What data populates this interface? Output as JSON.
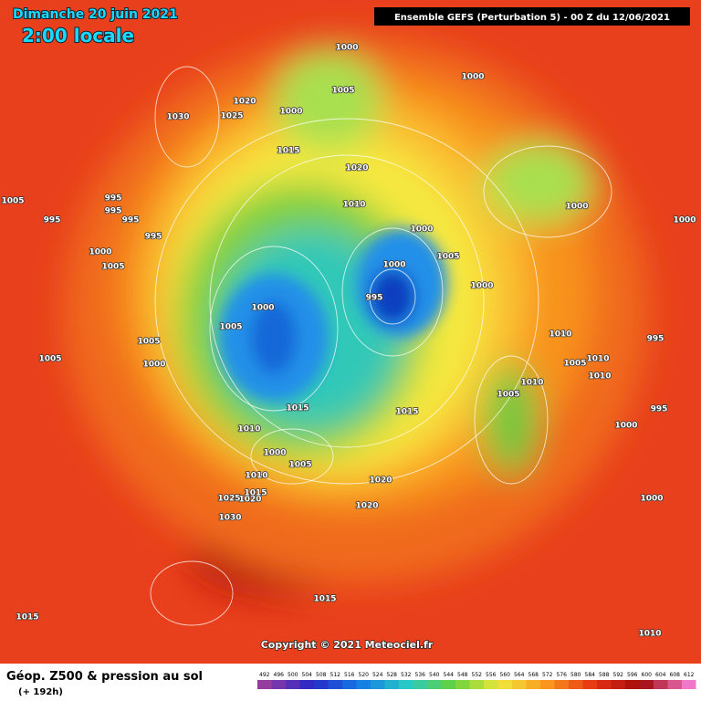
{
  "header": {
    "date": "Dimanche 20 juin 2021",
    "time": "2:00 locale",
    "run": "Ensemble GEFS  (Perturbation 5)  -  00 Z du 12/06/2021"
  },
  "isobars": [
    "1000",
    "1005",
    "1000",
    "1020",
    "1000",
    "1030",
    "1025",
    "1015",
    "1020",
    "1005",
    "995",
    "995",
    "995",
    "995",
    "1010",
    "1000",
    "1000",
    "1000",
    "995",
    "1000",
    "1005",
    "1000",
    "1005",
    "995",
    "1000",
    "1000",
    "1005",
    "1010",
    "995",
    "1005",
    "1005",
    "1000",
    "1010",
    "1005",
    "1010",
    "1010",
    "1005",
    "1015",
    "1015",
    "995",
    "1000",
    "1010",
    "1000",
    "1005",
    "1010",
    "1020",
    "1025",
    "1020",
    "1015",
    "1020",
    "1000",
    "1030",
    "1015",
    "1015",
    "1010"
  ],
  "footer": {
    "copyright": "Copyright © 2021 Meteociel.fr",
    "title": "Géop. Z500 & pression au sol",
    "lead": "(+ 192h)",
    "scale": [
      492,
      496,
      500,
      504,
      508,
      512,
      516,
      520,
      524,
      528,
      532,
      536,
      540,
      544,
      548,
      552,
      556,
      560,
      564,
      568,
      572,
      576,
      580,
      584,
      588,
      592,
      596,
      600,
      604,
      608,
      612
    ]
  }
}
